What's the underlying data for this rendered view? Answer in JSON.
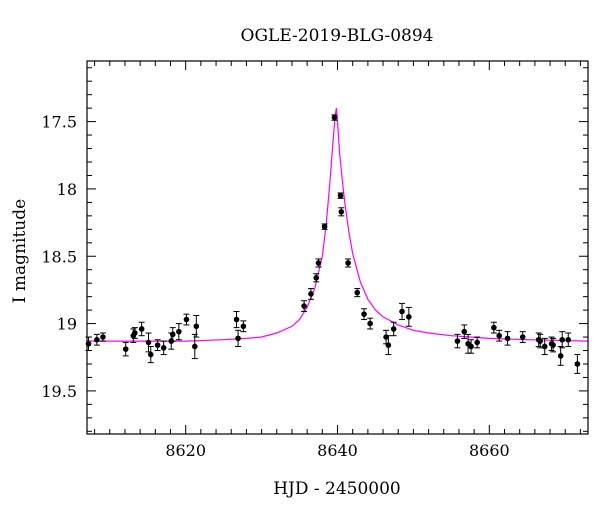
{
  "chart_data": {
    "type": "scatter",
    "title": "OGLE-2019-BLG-0894",
    "xlabel": "HJD - 2450000",
    "ylabel": "I magnitude",
    "xlim": [
      8607,
      8673
    ],
    "ylim": [
      19.82,
      17.05
    ],
    "y_inverted": true,
    "x_ticks": [
      8620,
      8640,
      8660
    ],
    "x_tick_labels": [
      "8620",
      "8640",
      "8660"
    ],
    "y_ticks": [
      17.5,
      18,
      18.5,
      19,
      19.5
    ],
    "y_tick_labels": [
      "17.5",
      "18",
      "18.5",
      "19",
      "19.5"
    ],
    "grid": false,
    "colors": {
      "points": "#000000",
      "model": "#ff00ff"
    },
    "series": [
      {
        "type": "scatter",
        "x": [
          8607.2,
          8608.3,
          8609.1,
          8612.1,
          8613.1,
          8613.3,
          8614.2,
          8615.1,
          8615.4,
          8616.3,
          8617.1,
          8618.1,
          8618.3,
          8619.1,
          8620.1,
          8621.2,
          8621.4,
          8626.7,
          8626.9,
          8627.6,
          8635.6,
          8636.5,
          8637.2,
          8637.5,
          8638.3,
          8639.6,
          8640.4,
          8640.5,
          8641.4,
          8642.6,
          8643.5,
          8644.3,
          8646.4,
          8646.7,
          8647.4,
          8648.5,
          8649.4,
          8655.8,
          8656.7,
          8657.2,
          8657.6,
          8658.4,
          8660.6,
          8661.3,
          8662.4,
          8664.4,
          8666.5,
          8666.7,
          8667.3,
          8668.2,
          8668.4,
          8669.4,
          8669.6,
          8670.4,
          8671.6
        ],
        "y": [
          19.15,
          19.12,
          19.1,
          19.19,
          19.09,
          19.07,
          19.04,
          19.14,
          19.23,
          19.16,
          19.18,
          19.13,
          19.08,
          19.06,
          18.97,
          19.17,
          19.02,
          18.97,
          19.11,
          19.02,
          18.87,
          18.78,
          18.66,
          18.55,
          18.28,
          17.47,
          18.05,
          18.17,
          18.55,
          18.77,
          18.93,
          19.0,
          19.1,
          19.16,
          19.04,
          18.91,
          18.95,
          19.13,
          19.06,
          19.15,
          19.17,
          19.14,
          19.03,
          19.09,
          19.11,
          19.1,
          19.12,
          19.13,
          19.17,
          19.15,
          19.16,
          19.24,
          19.12,
          19.12,
          19.3
        ],
        "err": [
          0.05,
          0.04,
          0.03,
          0.05,
          0.05,
          0.04,
          0.05,
          0.07,
          0.06,
          0.04,
          0.05,
          0.06,
          0.05,
          0.06,
          0.04,
          0.09,
          0.08,
          0.06,
          0.06,
          0.04,
          0.04,
          0.04,
          0.03,
          0.03,
          0.02,
          0.02,
          0.02,
          0.03,
          0.03,
          0.03,
          0.04,
          0.04,
          0.05,
          0.07,
          0.05,
          0.06,
          0.07,
          0.05,
          0.05,
          0.07,
          0.05,
          0.04,
          0.04,
          0.04,
          0.05,
          0.04,
          0.05,
          0.05,
          0.06,
          0.05,
          0.05,
          0.07,
          0.06,
          0.05,
          0.07
        ]
      },
      {
        "type": "line",
        "model": "point-lens microlensing fit",
        "x": [
          8607,
          8615,
          8620,
          8625,
          8628,
          8630,
          8632,
          8634,
          8635,
          8636,
          8637,
          8638,
          8638.5,
          8639,
          8639.4,
          8639.7,
          8639.85,
          8640.0,
          8640.3,
          8640.7,
          8641,
          8641.5,
          8642,
          8643,
          8644,
          8645,
          8646,
          8648,
          8650,
          8652,
          8655,
          8660,
          8665,
          8673
        ],
        "y": [
          19.13,
          19.13,
          19.13,
          19.12,
          19.11,
          19.1,
          19.07,
          19.02,
          18.97,
          18.88,
          18.74,
          18.5,
          18.27,
          17.95,
          17.66,
          17.45,
          17.4,
          17.5,
          17.75,
          17.97,
          18.12,
          18.32,
          18.48,
          18.69,
          18.82,
          18.9,
          18.95,
          19.01,
          19.05,
          19.07,
          19.09,
          19.11,
          19.12,
          19.13
        ]
      }
    ]
  }
}
